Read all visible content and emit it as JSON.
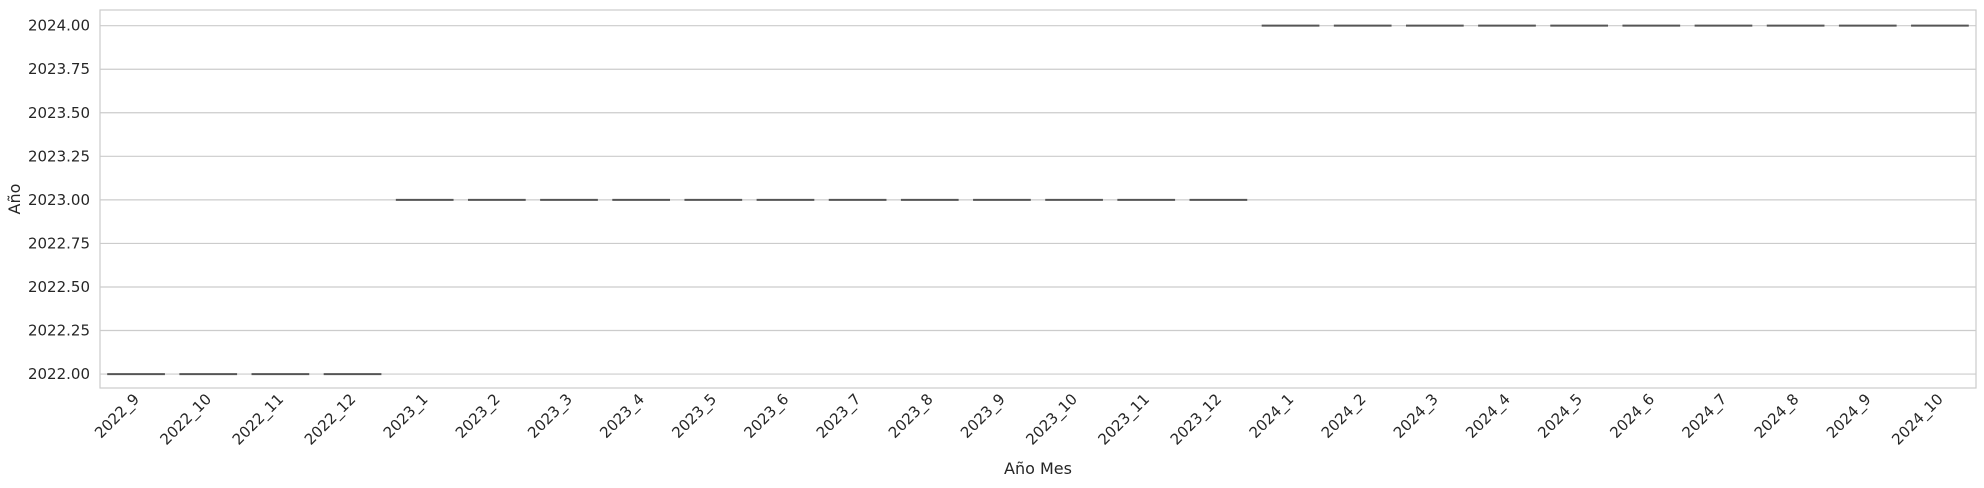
{
  "chart_data": {
    "type": "box",
    "title": "",
    "xlabel": "Año Mes",
    "ylabel": "Año",
    "ylim": [
      2021.92,
      2024.09
    ],
    "yticks": [
      "2022.00",
      "2022.25",
      "2022.50",
      "2022.75",
      "2023.00",
      "2023.25",
      "2023.50",
      "2023.75",
      "2024.00"
    ],
    "grid": true,
    "categories": [
      "2022_9",
      "2022_10",
      "2022_11",
      "2022_12",
      "2023_1",
      "2023_2",
      "2023_3",
      "2023_4",
      "2023_5",
      "2023_6",
      "2023_7",
      "2023_8",
      "2023_9",
      "2023_10",
      "2023_11",
      "2023_12",
      "2024_1",
      "2024_2",
      "2024_3",
      "2024_4",
      "2024_5",
      "2024_6",
      "2024_7",
      "2024_8",
      "2024_9",
      "2024_10"
    ],
    "values": [
      2022,
      2022,
      2022,
      2022,
      2023,
      2023,
      2023,
      2023,
      2023,
      2023,
      2023,
      2023,
      2023,
      2023,
      2023,
      2023,
      2024,
      2024,
      2024,
      2024,
      2024,
      2024,
      2024,
      2024,
      2024,
      2024
    ],
    "colors": {
      "grid": "#cccccc",
      "frame": "#cccccc",
      "box_line": "#555555",
      "text": "#262626"
    }
  }
}
